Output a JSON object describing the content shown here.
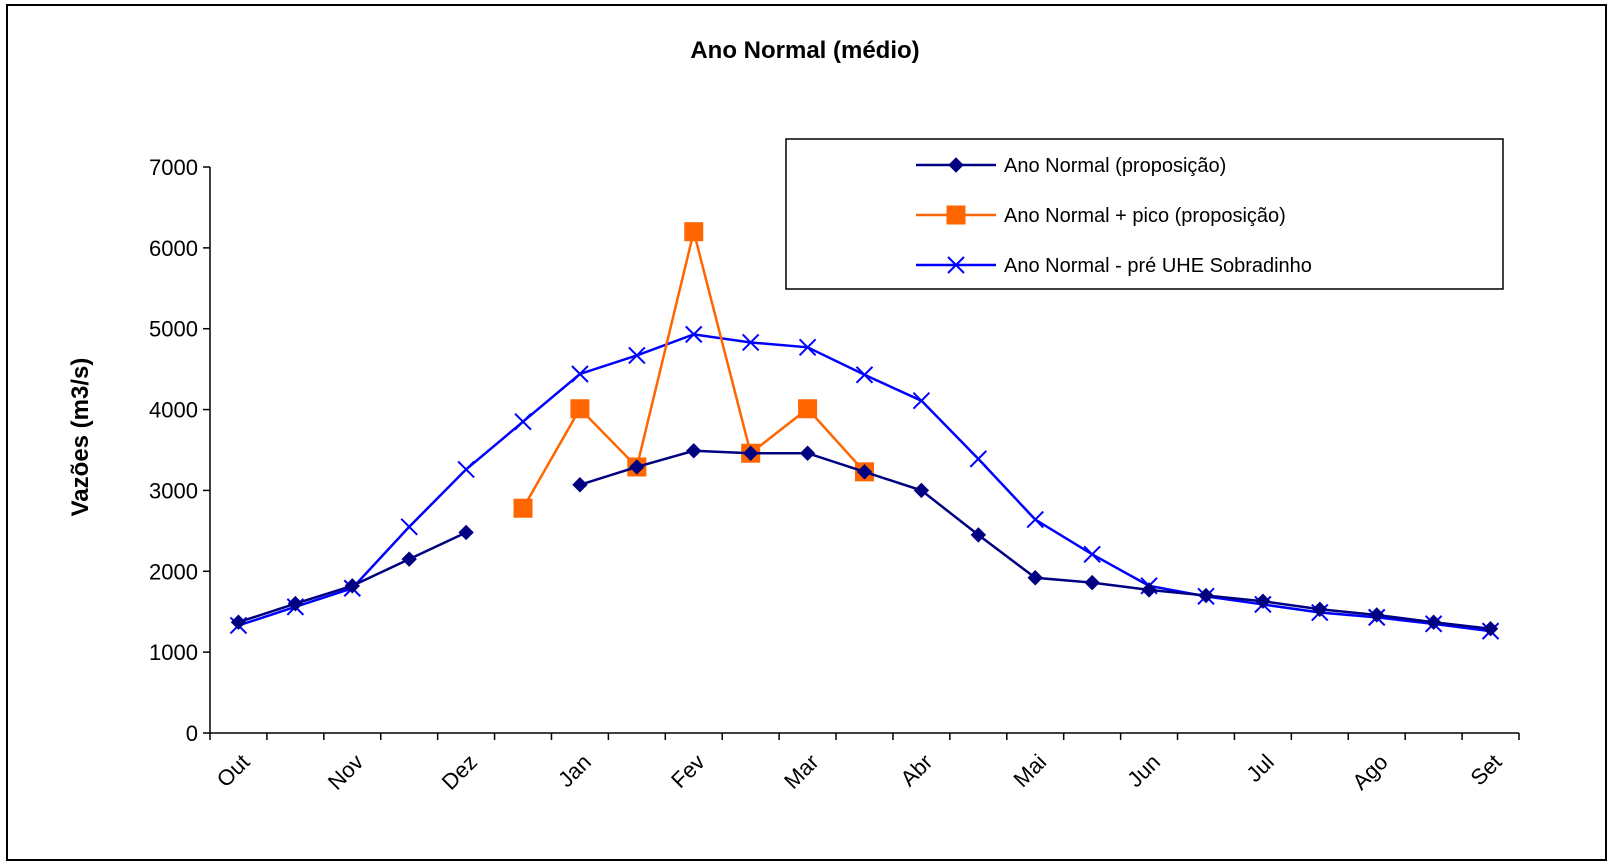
{
  "chart_data": {
    "type": "line",
    "title": "Ano Normal (médio)",
    "xlabel": "",
    "ylabel": "Vazões (m3/s)",
    "ylim": [
      0,
      7000
    ],
    "yticks": [
      0,
      1000,
      2000,
      3000,
      4000,
      5000,
      6000,
      7000
    ],
    "x_tick_labels": [
      "Out",
      "Nov",
      "Dez",
      "Jan",
      "Fev",
      "Mar",
      "Abr",
      "Mai",
      "Jun",
      "Jul",
      "Ago",
      "Set"
    ],
    "x": [
      "Out",
      "",
      "Nov",
      "",
      "Dez",
      "",
      "Jan",
      "",
      "Fev",
      "",
      "Mar",
      "",
      "Abr",
      "",
      "Mai",
      "",
      "Jun",
      "",
      "Jul",
      "",
      "Ago",
      "",
      "Set"
    ],
    "grid": false,
    "legend_position": "top-right",
    "series": [
      {
        "name": "Ano Normal (proposição)",
        "color": "#000080",
        "marker": "diamond",
        "values": [
          1370,
          1600,
          1820,
          2150,
          2480,
          null,
          3070,
          3290,
          3490,
          3460,
          3460,
          3230,
          3000,
          2450,
          1920,
          1860,
          1770,
          1700,
          1630,
          1530,
          1460,
          1370,
          1290
        ]
      },
      {
        "name": "Ano Normal + pico (proposição)",
        "color": "#ff6600",
        "marker": "square",
        "values": [
          null,
          null,
          null,
          null,
          null,
          2780,
          4010,
          3290,
          6200,
          3460,
          4010,
          3230,
          null,
          null,
          null,
          null,
          null,
          null,
          null,
          null,
          null,
          null,
          null
        ]
      },
      {
        "name": "Ano Normal - pré UHE Sobradinho",
        "color": "#0000ff",
        "marker": "x",
        "values": [
          1330,
          1560,
          1790,
          2550,
          3260,
          3850,
          4440,
          4670,
          4930,
          4830,
          4770,
          4430,
          4110,
          3390,
          2640,
          2210,
          1820,
          1690,
          1590,
          1490,
          1430,
          1350,
          1260
        ]
      }
    ]
  }
}
